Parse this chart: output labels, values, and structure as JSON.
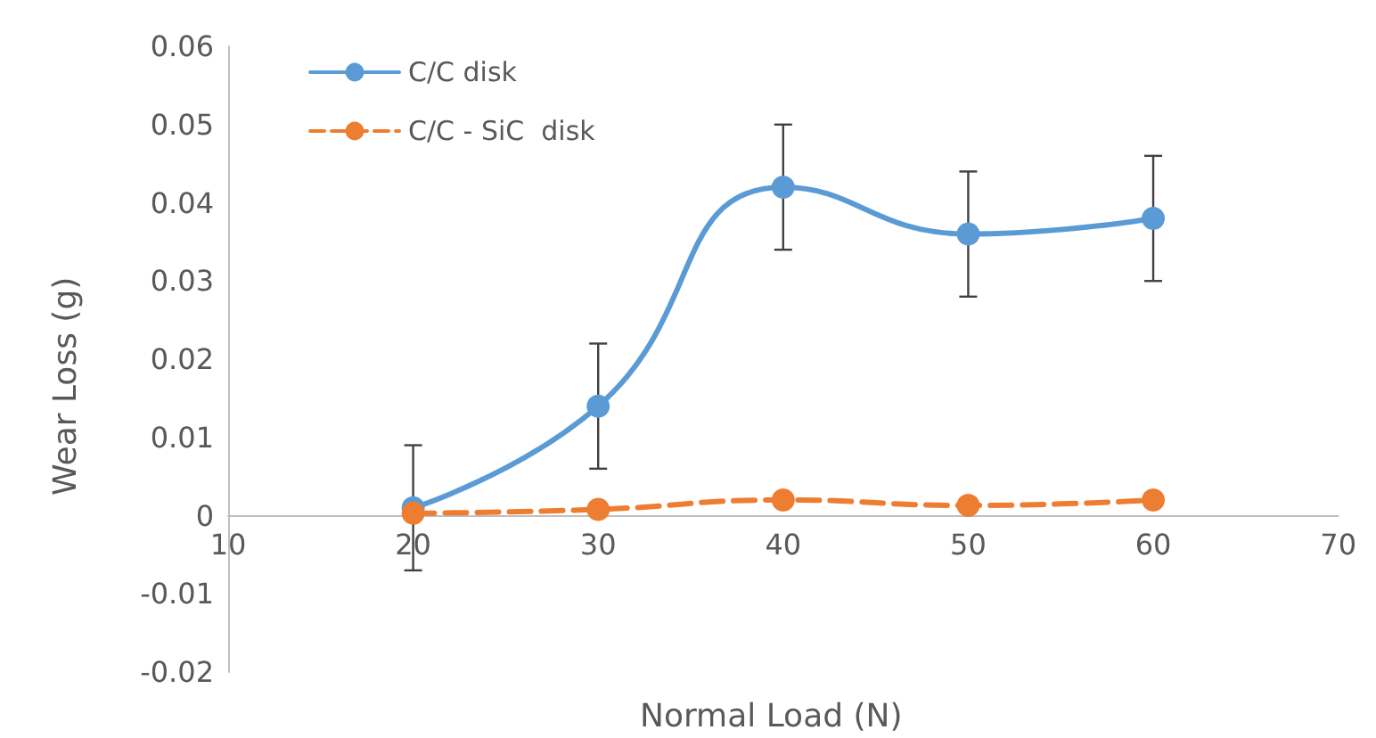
{
  "chart_data": {
    "type": "line",
    "xlabel": "Normal Load (N)",
    "ylabel": "Wear Loss (g)",
    "x": [
      20,
      30,
      40,
      50,
      60
    ],
    "xlim": [
      10,
      70
    ],
    "xticks": [
      10,
      20,
      30,
      40,
      50,
      60,
      70
    ],
    "ylim": [
      -0.02,
      0.06
    ],
    "yticks": [
      -0.02,
      -0.01,
      0,
      0.01,
      0.02,
      0.03,
      0.04,
      0.05,
      0.06
    ],
    "grid": false,
    "legend": "top left",
    "marker": "circle",
    "series": [
      {
        "name": "C/C disk",
        "color": "#5b9bd5",
        "line_style": "solid",
        "values": [
          0.001,
          0.014,
          0.042,
          0.036,
          0.038
        ],
        "errors": [
          0.008,
          0.008,
          0.008,
          0.008,
          0.008
        ]
      },
      {
        "name": "C/C - SiC  disk",
        "color": "#ed7d31",
        "line_style": "dashed",
        "values": [
          0.0003,
          0.0008,
          0.002,
          0.0013,
          0.002
        ]
      }
    ]
  }
}
